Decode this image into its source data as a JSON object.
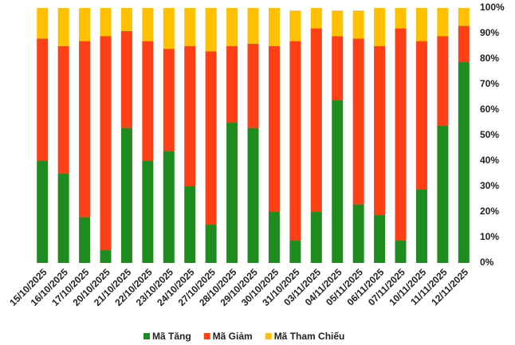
{
  "chart_data": {
    "type": "stacked_bar",
    "categories": [
      "15/10/2025",
      "16/10/2025",
      "17/10/2025",
      "20/10/2025",
      "21/10/2025",
      "22/10/2025",
      "23/10/2025",
      "24/10/2025",
      "27/10/2025",
      "28/10/2025",
      "29/10/2025",
      "30/10/2025",
      "31/10/2025",
      "03/11/2025",
      "04/11/2025",
      "05/11/2025",
      "06/11/2025",
      "07/11/2025",
      "10/11/2025",
      "11/11/2025",
      "12/11/2025"
    ],
    "series": [
      {
        "name": "Mã Tăng",
        "color": "#1e8c1e",
        "values": [
          40,
          35,
          18,
          5,
          53,
          40,
          44,
          30,
          15,
          55,
          53,
          20,
          9,
          20,
          64,
          23,
          19,
          9,
          29,
          54,
          79
        ]
      },
      {
        "name": "Mã Giảm",
        "color": "#ff3f16",
        "values": [
          48,
          50,
          69,
          84,
          38,
          47,
          40,
          55,
          68,
          30,
          33,
          65,
          78,
          72,
          25,
          65,
          66,
          83,
          58,
          35,
          14
        ]
      },
      {
        "name": "Mã Tham Chiếu",
        "color": "#ffc000",
        "values": [
          12,
          15,
          13,
          11,
          9,
          13,
          16,
          15,
          17,
          15,
          14,
          15,
          12,
          8,
          10,
          11,
          15,
          8,
          13,
          11,
          7
        ]
      }
    ],
    "ylim": [
      0,
      100
    ],
    "yticks": [
      {
        "value": 0,
        "label": "0%"
      },
      {
        "value": 10,
        "label": "10%"
      },
      {
        "value": 20,
        "label": "20%"
      },
      {
        "value": 30,
        "label": "30%"
      },
      {
        "value": 40,
        "label": "40%"
      },
      {
        "value": 50,
        "label": "50%"
      },
      {
        "value": 60,
        "label": "60%"
      },
      {
        "value": 70,
        "label": "70%"
      },
      {
        "value": 80,
        "label": "80%"
      },
      {
        "value": 90,
        "label": "90%"
      },
      {
        "value": 100,
        "label": "100%"
      }
    ],
    "grid": false,
    "legend": "bottom"
  }
}
